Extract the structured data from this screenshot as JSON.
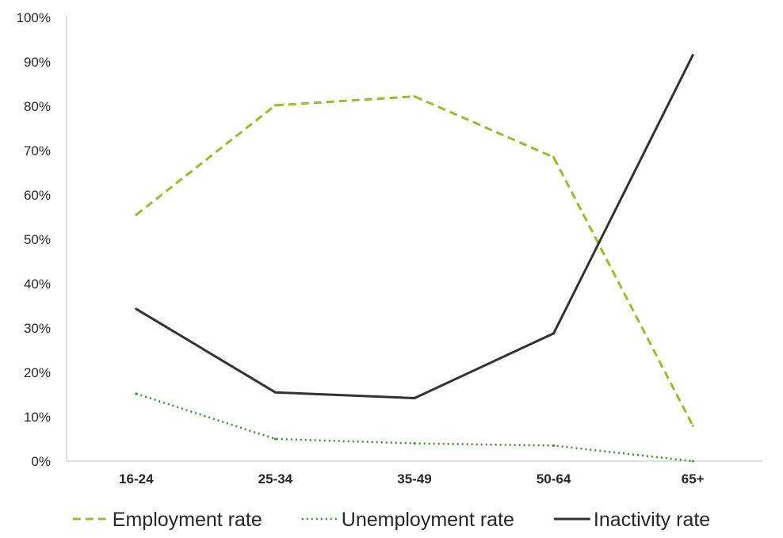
{
  "chart_data": {
    "type": "line",
    "title": "",
    "xlabel": "",
    "ylabel": "",
    "categories": [
      "16-24",
      "25-34",
      "35-49",
      "50-64",
      "65+"
    ],
    "ylim": [
      0,
      1
    ],
    "y_ticks": [
      0,
      0.1,
      0.2,
      0.3,
      0.4,
      0.5,
      0.6,
      0.7,
      0.8,
      0.9,
      1.0
    ],
    "y_tick_labels": [
      "0%",
      "10%",
      "20%",
      "30%",
      "40%",
      "50%",
      "60%",
      "70%",
      "80%",
      "90%",
      "100%"
    ],
    "grid": false,
    "legend_position": "bottom",
    "series": [
      {
        "name": "Employment rate",
        "values": [
          0.555,
          0.802,
          0.822,
          0.685,
          0.08
        ],
        "color": "#9bbb2e",
        "style": "dashed"
      },
      {
        "name": "Unemployment rate",
        "values": [
          0.152,
          0.05,
          0.04,
          0.035,
          0.0
        ],
        "color": "#3c8c32",
        "style": "dotted"
      },
      {
        "name": "Inactivity rate",
        "values": [
          0.343,
          0.155,
          0.142,
          0.288,
          0.915
        ],
        "color": "#333333",
        "style": "solid"
      }
    ]
  }
}
